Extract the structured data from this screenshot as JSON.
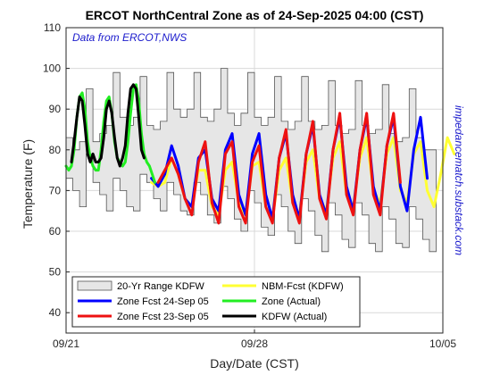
{
  "chart_data": {
    "type": "line",
    "title": "ERCOT NorthCentral Zone as of 24-Sep-2025 04:00 (CST)",
    "annotation": "Data from ERCOT,NWS",
    "side_annotation": "impedancematch.substack.com",
    "xlabel": "Day/Date (CST)",
    "ylabel": "Temperature (F)",
    "ylim": [
      35,
      110
    ],
    "yticks": [
      40,
      50,
      60,
      70,
      80,
      90,
      100,
      110
    ],
    "xlim": [
      0,
      14
    ],
    "xticks": [
      {
        "value": 0,
        "label": "09/21"
      },
      {
        "value": 7,
        "label": "09/28"
      },
      {
        "value": 14,
        "label": "10/05"
      }
    ],
    "grid": true,
    "legend_position": "bottom-left",
    "series": [
      {
        "name": "20-Yr Range KDFW",
        "kind": "range",
        "color": "#e6e6e6",
        "start_day": 0,
        "step_days": 0.25,
        "low": [
          73,
          70,
          66,
          79,
          72,
          69,
          65,
          73,
          70,
          66,
          65,
          74,
          72,
          68,
          65,
          72,
          69,
          65,
          64,
          72,
          69,
          64,
          62,
          71,
          68,
          63,
          60,
          70,
          67,
          61,
          59,
          69,
          66,
          60,
          57,
          68,
          65,
          59,
          55,
          67,
          64,
          58,
          56,
          67,
          64,
          57,
          55,
          66,
          63,
          57,
          56,
          66,
          63,
          58,
          55
        ],
        "high": [
          83,
          80,
          82,
          95,
          82,
          84,
          86,
          99,
          88,
          86,
          88,
          98,
          86,
          85,
          87,
          99,
          90,
          88,
          90,
          99,
          88,
          87,
          90,
          100,
          89,
          86,
          89,
          99,
          88,
          86,
          88,
          98,
          87,
          85,
          87,
          98,
          87,
          85,
          86,
          97,
          86,
          84,
          85,
          97,
          86,
          84,
          85,
          96,
          84,
          82,
          83,
          95,
          83,
          80,
          80
        ]
      },
      {
        "name": "NBM-Fcst (KDFW)",
        "color": "#ffff33",
        "start_day": 3.17,
        "step_days": 0.25,
        "values": [
          72,
          71,
          72,
          78,
          74,
          68,
          66,
          75,
          75,
          66,
          64,
          75,
          77,
          67,
          64,
          76,
          77,
          66,
          63,
          75,
          78,
          67,
          64,
          77,
          80,
          68,
          65,
          78,
          82,
          69,
          66,
          78,
          83,
          70,
          67,
          79,
          83,
          70,
          67,
          79,
          82,
          70,
          66,
          74,
          83,
          79
        ]
      },
      {
        "name": "Zone Fcst 24-Sep 05",
        "color": "#0000ff",
        "start_day": 3.17,
        "step_days": 0.25,
        "values": [
          73,
          71,
          74,
          81,
          76,
          68,
          66,
          78,
          80,
          68,
          65,
          80,
          84,
          69,
          64,
          79,
          84,
          69,
          63,
          78,
          84,
          69,
          63,
          79,
          86,
          69,
          64,
          80,
          88,
          71,
          65,
          80,
          88,
          71,
          65,
          81,
          88,
          71,
          65,
          80,
          88,
          73
        ]
      },
      {
        "name": "Zone Fcst 23-Sep 05",
        "color": "#ee1111",
        "start_day": 3.42,
        "step_days": 0.25,
        "values": [
          72,
          75,
          78,
          74,
          68,
          64,
          77,
          82,
          67,
          62,
          79,
          82,
          66,
          62,
          77,
          81,
          66,
          62,
          78,
          85,
          67,
          62,
          79,
          87,
          68,
          63,
          80,
          89,
          69,
          64,
          80,
          89,
          69,
          64,
          81,
          89,
          72
        ]
      },
      {
        "name": "Zone (Actual)",
        "color": "#22ee22",
        "start_day": 0,
        "step_days": 0.1,
        "values": [
          76,
          75,
          76,
          80,
          88,
          93,
          94,
          90,
          82,
          78,
          76,
          75,
          75,
          80,
          87,
          92,
          93,
          89,
          82,
          78,
          77,
          76,
          77,
          82,
          89,
          95,
          96,
          92,
          84,
          79,
          77,
          76,
          74,
          72
        ]
      },
      {
        "name": "KDFW (Actual)",
        "color": "#000000",
        "start_day": 0.2,
        "step_days": 0.1,
        "values": [
          77,
          82,
          88,
          93,
          92,
          86,
          79,
          77,
          79,
          77,
          77,
          78,
          83,
          90,
          92,
          89,
          83,
          78,
          76,
          78,
          81,
          89,
          95,
          96,
          95,
          88,
          80,
          78
        ]
      }
    ]
  }
}
